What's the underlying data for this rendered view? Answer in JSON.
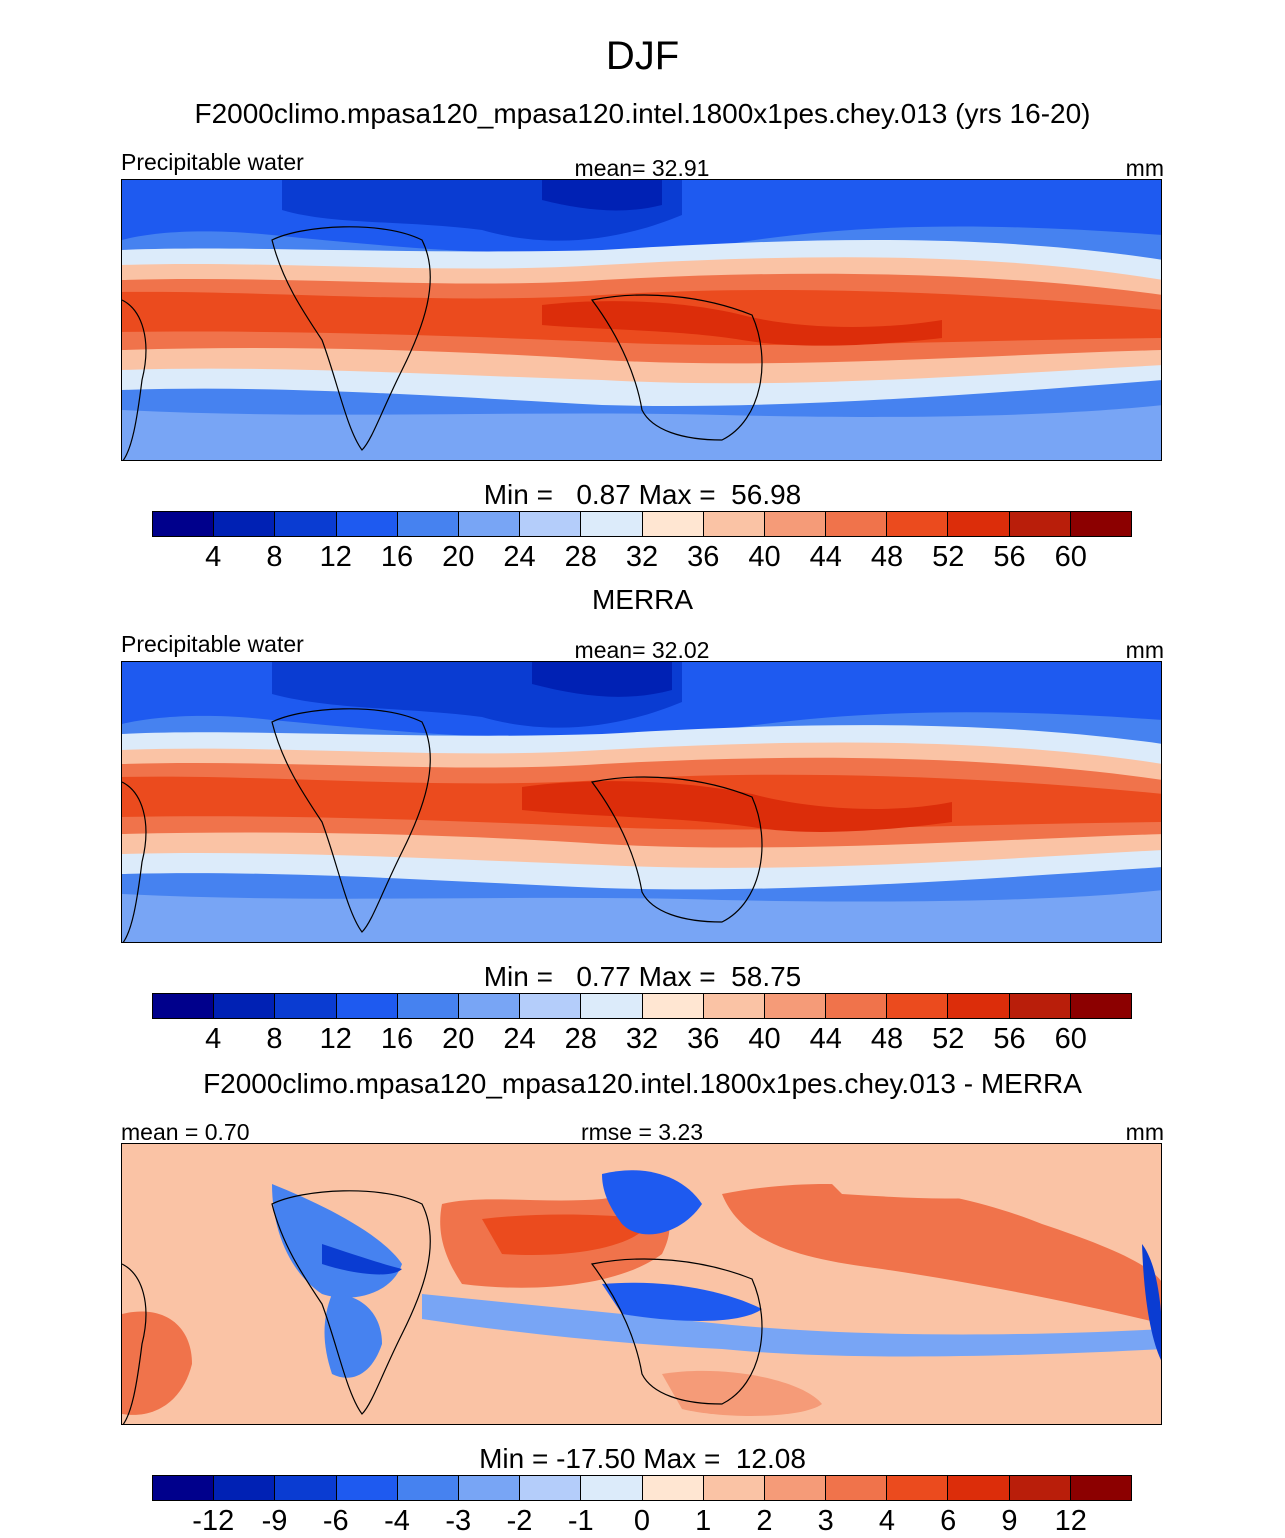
{
  "title": "DJF",
  "panels": [
    {
      "id": "model",
      "title": "F2000climo.mpasa120_mpasa120.intel.1800x1pes.chey.013 (yrs 16-20)",
      "left_label": "Precipitable water",
      "center_label": "mean=  32.91",
      "right_label": "mm",
      "minmax": "Min =   0.87 Max =  56.98",
      "colorbar": {
        "colors": [
          "#00008c",
          "#0021b4",
          "#0a3cd2",
          "#1e5af0",
          "#4682f0",
          "#78a5f5",
          "#b4cdfa",
          "#dcebfa",
          "#ffe6d2",
          "#fac3a5",
          "#f59b78",
          "#f0734b",
          "#eb4b1e",
          "#dc2d0a",
          "#b91e0a",
          "#8c0000"
        ],
        "ticks": [
          "4",
          "8",
          "12",
          "16",
          "20",
          "24",
          "28",
          "32",
          "36",
          "40",
          "44",
          "48",
          "52",
          "56",
          "60"
        ]
      }
    },
    {
      "id": "obs",
      "title": "MERRA",
      "left_label": "Precipitable water",
      "center_label": "mean=  32.02",
      "right_label": "mm",
      "minmax": "Min =   0.77 Max =  58.75",
      "colorbar": {
        "colors": [
          "#00008c",
          "#0021b4",
          "#0a3cd2",
          "#1e5af0",
          "#4682f0",
          "#78a5f5",
          "#b4cdfa",
          "#dcebfa",
          "#ffe6d2",
          "#fac3a5",
          "#f59b78",
          "#f0734b",
          "#eb4b1e",
          "#dc2d0a",
          "#b91e0a",
          "#8c0000"
        ],
        "ticks": [
          "4",
          "8",
          "12",
          "16",
          "20",
          "24",
          "28",
          "32",
          "36",
          "40",
          "44",
          "48",
          "52",
          "56",
          "60"
        ]
      }
    },
    {
      "id": "diff",
      "title": "F2000climo.mpasa120_mpasa120.intel.1800x1pes.chey.013 - MERRA",
      "left_label": "mean =   0.70",
      "center_label": "rmse =   3.23",
      "right_label": "mm",
      "minmax": "Min = -17.50 Max =  12.08",
      "colorbar": {
        "colors": [
          "#00008c",
          "#0021b4",
          "#0a3cd2",
          "#1e5af0",
          "#4682f0",
          "#78a5f5",
          "#b4cdfa",
          "#dcebfa",
          "#ffe6d2",
          "#fac3a5",
          "#f59b78",
          "#f0734b",
          "#eb4b1e",
          "#dc2d0a",
          "#b91e0a",
          "#8c0000"
        ],
        "ticks": [
          "-12",
          "-9",
          "-6",
          "-4",
          "-3",
          "-2",
          "-1",
          "0",
          "1",
          "2",
          "3",
          "4",
          "6",
          "9",
          "12"
        ]
      }
    }
  ]
}
